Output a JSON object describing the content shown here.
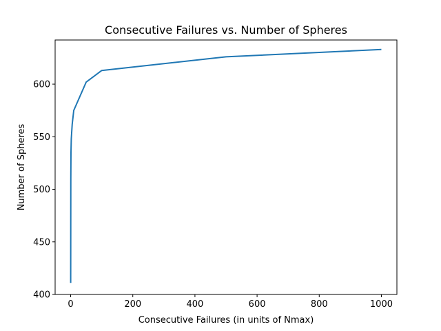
{
  "chart_data": {
    "type": "line",
    "title": "Consecutive Failures vs. Number of Spheres",
    "xlabel": "Consecutive Failures (in units of Nmax)",
    "ylabel": "Number of Spheres",
    "xlim": [
      -50,
      1050
    ],
    "ylim": [
      400,
      642
    ],
    "xticks": [
      0,
      200,
      400,
      600,
      800,
      1000
    ],
    "yticks": [
      400,
      450,
      500,
      550,
      600
    ],
    "grid": false,
    "legend": "none",
    "series": [
      {
        "color": "#1f77b4",
        "x": [
          0.1,
          0.5,
          1,
          2,
          5,
          10,
          50,
          100,
          500,
          1000
        ],
        "y": [
          411,
          510,
          535,
          548,
          562,
          575,
          602,
          613,
          626,
          633
        ]
      }
    ]
  }
}
